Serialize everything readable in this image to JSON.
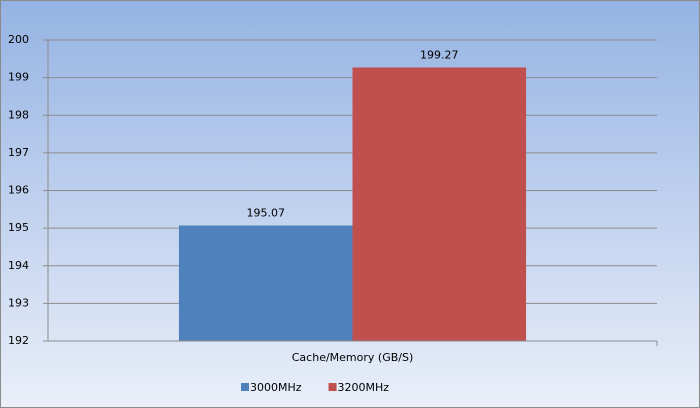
{
  "chart_data": {
    "type": "bar",
    "categories": [
      "Cache/Memory (GB/S)"
    ],
    "series": [
      {
        "name": "3000MHz",
        "color": "#4f81bd",
        "values": [
          195.07
        ]
      },
      {
        "name": "3200MHz",
        "color": "#c0504d",
        "values": [
          199.27
        ]
      }
    ],
    "ylim": [
      192,
      200
    ],
    "yticks": [
      192,
      193,
      194,
      195,
      196,
      197,
      198,
      199,
      200
    ],
    "grid": true,
    "legend": "bottom",
    "data_labels": true
  }
}
